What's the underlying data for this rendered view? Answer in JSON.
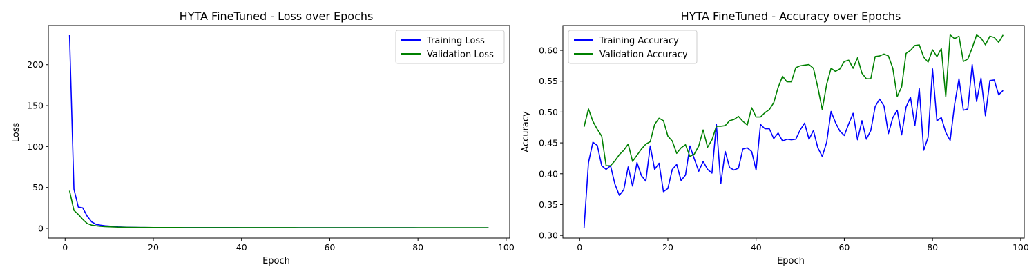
{
  "colors": {
    "training": "#0000ff",
    "validation": "#008000",
    "background": "#ffffff",
    "axis": "#000000",
    "legend_border": "#cccccc"
  },
  "chart_data": [
    {
      "type": "line",
      "title": "HYTA FineTuned - Loss over Epochs",
      "xlabel": "Epoch",
      "ylabel": "Loss",
      "xlim": [
        -3.8,
        100.8
      ],
      "ylim": [
        -11.8,
        247.8
      ],
      "xticks": [
        0,
        20,
        40,
        60,
        80,
        100
      ],
      "yticks": [
        0,
        50,
        100,
        150,
        200
      ],
      "xtick_labels": [
        "0",
        "20",
        "40",
        "60",
        "80",
        "100"
      ],
      "ytick_labels": [
        "0",
        "50",
        "100",
        "150",
        "200"
      ],
      "legend_position": "upper right",
      "grid": false,
      "series": [
        {
          "name": "Training Loss",
          "color": "#0000ff",
          "x": [
            1,
            2,
            3,
            4,
            5,
            6,
            7,
            8,
            9,
            10,
            11,
            12,
            13,
            14,
            15,
            16,
            17,
            18,
            19,
            20,
            21,
            22,
            23,
            24,
            25,
            26,
            27,
            28,
            29,
            30,
            31,
            32,
            33,
            34,
            35,
            36,
            37,
            38,
            39,
            40,
            41,
            42,
            43,
            44,
            45,
            46,
            47,
            48,
            49,
            50,
            51,
            52,
            53,
            54,
            55,
            56,
            57,
            58,
            59,
            60,
            61,
            62,
            63,
            64,
            65,
            66,
            67,
            68,
            69,
            70,
            71,
            72,
            73,
            74,
            75,
            76,
            77,
            78,
            79,
            80,
            81,
            82,
            83,
            84,
            85,
            86,
            87,
            88,
            89,
            90,
            91,
            92,
            93,
            94,
            95,
            96
          ],
          "y": [
            236,
            48,
            26,
            25,
            15,
            8,
            5,
            4,
            3.2,
            2.8,
            2.2,
            1.8,
            1.6,
            1.4,
            1.3,
            1.2,
            1.15,
            1.1,
            1.05,
            1.0,
            1.0,
            0.98,
            0.97,
            0.96,
            0.95,
            0.94,
            0.93,
            0.92,
            0.91,
            0.9,
            0.9,
            0.89,
            0.89,
            0.88,
            0.88,
            0.87,
            0.87,
            0.86,
            0.86,
            0.85,
            0.85,
            0.85,
            0.84,
            0.84,
            0.84,
            0.83,
            0.83,
            0.83,
            0.82,
            0.82,
            0.82,
            0.82,
            0.81,
            0.81,
            0.81,
            0.8,
            0.8,
            0.8,
            0.8,
            0.79,
            0.79,
            0.79,
            0.79,
            0.78,
            0.78,
            0.78,
            0.78,
            0.77,
            0.77,
            0.77,
            0.77,
            0.76,
            0.76,
            0.76,
            0.76,
            0.75,
            0.75,
            0.75,
            0.75,
            0.74,
            0.74,
            0.74,
            0.74,
            0.73,
            0.73,
            0.73,
            0.73,
            0.72,
            0.72,
            0.72,
            0.72,
            0.71,
            0.71,
            0.71,
            0.71,
            0.7
          ]
        },
        {
          "name": "Validation Loss",
          "color": "#008000",
          "x": [
            1,
            2,
            3,
            4,
            5,
            6,
            7,
            8,
            9,
            10,
            11,
            12,
            13,
            14,
            15,
            16,
            17,
            18,
            19,
            20,
            21,
            22,
            23,
            24,
            25,
            26,
            27,
            28,
            29,
            30,
            31,
            32,
            33,
            34,
            35,
            36,
            37,
            38,
            39,
            40,
            41,
            42,
            43,
            44,
            45,
            46,
            47,
            48,
            49,
            50,
            51,
            52,
            53,
            54,
            55,
            56,
            57,
            58,
            59,
            60,
            61,
            62,
            63,
            64,
            65,
            66,
            67,
            68,
            69,
            70,
            71,
            72,
            73,
            74,
            75,
            76,
            77,
            78,
            79,
            80,
            81,
            82,
            83,
            84,
            85,
            86,
            87,
            88,
            89,
            90,
            91,
            92,
            93,
            94,
            95,
            96
          ],
          "y": [
            46,
            22,
            17,
            11,
            6,
            4,
            3.2,
            2.6,
            2.2,
            1.9,
            1.7,
            1.5,
            1.4,
            1.3,
            1.25,
            1.2,
            1.15,
            1.1,
            1.08,
            1.05,
            1.03,
            1.0,
            0.99,
            0.98,
            0.97,
            0.96,
            0.95,
            0.94,
            0.94,
            0.93,
            0.93,
            0.92,
            0.92,
            0.91,
            0.91,
            0.9,
            0.9,
            0.9,
            0.89,
            0.89,
            0.89,
            0.88,
            0.88,
            0.88,
            0.87,
            0.87,
            0.87,
            0.87,
            0.86,
            0.86,
            0.86,
            0.86,
            0.85,
            0.85,
            0.85,
            0.85,
            0.84,
            0.84,
            0.84,
            0.84,
            0.83,
            0.83,
            0.83,
            0.83,
            0.82,
            0.82,
            0.82,
            0.82,
            0.81,
            0.81,
            0.81,
            0.81,
            0.8,
            0.8,
            0.8,
            0.8,
            0.79,
            0.79,
            0.79,
            0.79,
            0.78,
            0.78,
            0.78,
            0.78,
            0.77,
            0.77,
            0.77,
            0.77,
            0.76,
            0.76,
            0.76,
            0.76,
            0.75,
            0.75,
            0.75,
            0.75
          ]
        }
      ]
    },
    {
      "type": "line",
      "title": "HYTA FineTuned - Accuracy over Epochs",
      "xlabel": "Epoch",
      "ylabel": "Accuracy",
      "xlim": [
        -3.8,
        100.8
      ],
      "ylim": [
        0.2957,
        0.6403
      ],
      "xticks": [
        0,
        20,
        40,
        60,
        80,
        100
      ],
      "yticks": [
        0.3,
        0.35,
        0.4,
        0.45,
        0.5,
        0.55,
        0.6
      ],
      "xtick_labels": [
        "0",
        "20",
        "40",
        "60",
        "80",
        "100"
      ],
      "ytick_labels": [
        "0.30",
        "0.35",
        "0.40",
        "0.45",
        "0.50",
        "0.55",
        "0.60"
      ],
      "legend_position": "upper left",
      "grid": false,
      "series": [
        {
          "name": "Training Accuracy",
          "color": "#0000ff",
          "x": [
            1,
            2,
            3,
            4,
            5,
            6,
            7,
            8,
            9,
            10,
            11,
            12,
            13,
            14,
            15,
            16,
            17,
            18,
            19,
            20,
            21,
            22,
            23,
            24,
            25,
            26,
            27,
            28,
            29,
            30,
            31,
            32,
            33,
            34,
            35,
            36,
            37,
            38,
            39,
            40,
            41,
            42,
            43,
            44,
            45,
            46,
            47,
            48,
            49,
            50,
            51,
            52,
            53,
            54,
            55,
            56,
            57,
            58,
            59,
            60,
            61,
            62,
            63,
            64,
            65,
            66,
            67,
            68,
            69,
            70,
            71,
            72,
            73,
            74,
            75,
            76,
            77,
            78,
            79,
            80,
            81,
            82,
            83,
            84,
            85,
            86,
            87,
            88,
            89,
            90,
            91,
            92,
            93,
            94,
            95,
            96
          ],
          "y": [
            0.312,
            0.418,
            0.451,
            0.446,
            0.413,
            0.407,
            0.413,
            0.383,
            0.365,
            0.374,
            0.411,
            0.38,
            0.418,
            0.397,
            0.388,
            0.445,
            0.407,
            0.417,
            0.371,
            0.376,
            0.407,
            0.415,
            0.389,
            0.398,
            0.445,
            0.424,
            0.404,
            0.42,
            0.407,
            0.401,
            0.48,
            0.384,
            0.436,
            0.41,
            0.406,
            0.409,
            0.44,
            0.442,
            0.436,
            0.406,
            0.48,
            0.473,
            0.473,
            0.457,
            0.466,
            0.453,
            0.456,
            0.455,
            0.456,
            0.471,
            0.482,
            0.456,
            0.47,
            0.442,
            0.428,
            0.451,
            0.501,
            0.483,
            0.469,
            0.462,
            0.481,
            0.498,
            0.455,
            0.486,
            0.456,
            0.47,
            0.509,
            0.521,
            0.51,
            0.465,
            0.491,
            0.503,
            0.463,
            0.508,
            0.524,
            0.478,
            0.538,
            0.438,
            0.459,
            0.57,
            0.486,
            0.491,
            0.467,
            0.454,
            0.512,
            0.554,
            0.503,
            0.505,
            0.577,
            0.517,
            0.555,
            0.494,
            0.551,
            0.552,
            0.528,
            0.535
          ]
        },
        {
          "name": "Validation Accuracy",
          "color": "#008000",
          "x": [
            1,
            2,
            3,
            4,
            5,
            6,
            7,
            8,
            9,
            10,
            11,
            12,
            13,
            14,
            15,
            16,
            17,
            18,
            19,
            20,
            21,
            22,
            23,
            24,
            25,
            26,
            27,
            28,
            29,
            30,
            31,
            32,
            33,
            34,
            35,
            36,
            37,
            38,
            39,
            40,
            41,
            42,
            43,
            44,
            45,
            46,
            47,
            48,
            49,
            50,
            51,
            52,
            53,
            54,
            55,
            56,
            57,
            58,
            59,
            60,
            61,
            62,
            63,
            64,
            65,
            66,
            67,
            68,
            69,
            70,
            71,
            72,
            73,
            74,
            75,
            76,
            77,
            78,
            79,
            80,
            81,
            82,
            83,
            84,
            85,
            86,
            87,
            88,
            89,
            90,
            91,
            92,
            93,
            94,
            95,
            96
          ],
          "y": [
            0.476,
            0.505,
            0.485,
            0.472,
            0.461,
            0.413,
            0.413,
            0.421,
            0.431,
            0.438,
            0.448,
            0.42,
            0.43,
            0.44,
            0.448,
            0.452,
            0.48,
            0.49,
            0.486,
            0.461,
            0.453,
            0.433,
            0.442,
            0.447,
            0.428,
            0.432,
            0.445,
            0.471,
            0.443,
            0.455,
            0.477,
            0.477,
            0.478,
            0.486,
            0.488,
            0.493,
            0.485,
            0.479,
            0.507,
            0.492,
            0.492,
            0.499,
            0.504,
            0.515,
            0.54,
            0.558,
            0.549,
            0.549,
            0.572,
            0.575,
            0.576,
            0.577,
            0.571,
            0.54,
            0.504,
            0.545,
            0.571,
            0.566,
            0.57,
            0.582,
            0.584,
            0.571,
            0.588,
            0.563,
            0.554,
            0.554,
            0.59,
            0.591,
            0.594,
            0.591,
            0.571,
            0.525,
            0.541,
            0.595,
            0.6,
            0.608,
            0.609,
            0.589,
            0.581,
            0.601,
            0.59,
            0.603,
            0.525,
            0.625,
            0.619,
            0.623,
            0.582,
            0.586,
            0.604,
            0.625,
            0.62,
            0.609,
            0.623,
            0.621,
            0.613,
            0.625
          ]
        }
      ]
    }
  ]
}
